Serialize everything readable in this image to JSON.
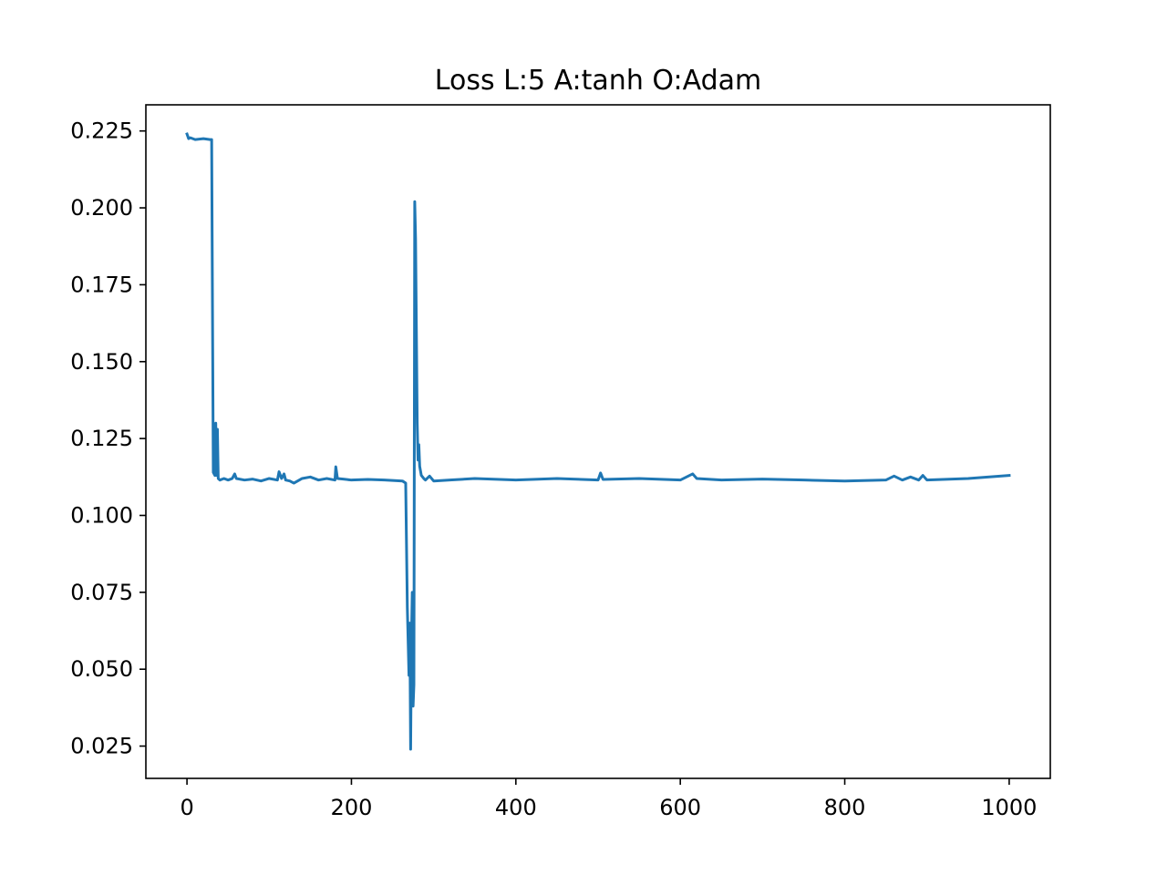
{
  "chart_data": {
    "type": "line",
    "title": "Loss L:5 A:tanh O:Adam",
    "xlabel": "",
    "ylabel": "",
    "xlim": [
      -50,
      1050
    ],
    "ylim": [
      0.0145,
      0.2335
    ],
    "xticks": [
      0,
      200,
      400,
      600,
      800,
      1000
    ],
    "xtick_labels": [
      "0",
      "200",
      "400",
      "600",
      "800",
      "1000"
    ],
    "yticks": [
      0.025,
      0.05,
      0.075,
      0.1,
      0.125,
      0.15,
      0.175,
      0.2,
      0.225
    ],
    "ytick_labels": [
      "0.025",
      "0.050",
      "0.075",
      "0.100",
      "0.125",
      "0.150",
      "0.175",
      "0.200",
      "0.225"
    ],
    "grid": false,
    "legend": "none",
    "series": [
      {
        "color": "#1f77b4",
        "x": [
          0,
          2,
          4,
          10,
          20,
          28,
          30,
          32,
          34,
          35,
          36,
          37,
          38,
          40,
          45,
          50,
          55,
          58,
          60,
          70,
          80,
          90,
          100,
          110,
          112,
          115,
          118,
          120,
          125,
          130,
          140,
          150,
          160,
          170,
          180,
          181,
          183,
          190,
          200,
          220,
          240,
          255,
          262,
          266,
          268,
          270,
          271,
          272,
          273,
          274,
          275,
          276,
          277,
          278,
          279,
          280,
          281,
          282,
          283,
          285,
          288,
          290,
          295,
          300,
          320,
          350,
          400,
          450,
          500,
          503,
          506,
          550,
          600,
          615,
          620,
          650,
          700,
          750,
          800,
          850,
          860,
          870,
          880,
          890,
          895,
          900,
          950,
          1000
        ],
        "y": [
          0.224,
          0.2225,
          0.2228,
          0.2222,
          0.2225,
          0.2222,
          0.2222,
          0.114,
          0.113,
          0.13,
          0.113,
          0.128,
          0.112,
          0.1115,
          0.112,
          0.1115,
          0.112,
          0.1135,
          0.112,
          0.1115,
          0.1118,
          0.1112,
          0.112,
          0.1115,
          0.1142,
          0.112,
          0.1135,
          0.1115,
          0.1112,
          0.1105,
          0.112,
          0.1125,
          0.1115,
          0.112,
          0.1115,
          0.1158,
          0.112,
          0.1118,
          0.1115,
          0.1117,
          0.1115,
          0.1113,
          0.1112,
          0.1105,
          0.07,
          0.048,
          0.065,
          0.024,
          0.06,
          0.075,
          0.038,
          0.045,
          0.202,
          0.19,
          0.16,
          0.13,
          0.118,
          0.123,
          0.116,
          0.113,
          0.112,
          0.1115,
          0.1128,
          0.1112,
          0.1115,
          0.112,
          0.1115,
          0.112,
          0.1115,
          0.1138,
          0.1117,
          0.112,
          0.1115,
          0.1135,
          0.112,
          0.1115,
          0.1118,
          0.1115,
          0.1112,
          0.1115,
          0.1128,
          0.1115,
          0.1125,
          0.1115,
          0.113,
          0.1115,
          0.112,
          0.113
        ]
      }
    ]
  }
}
